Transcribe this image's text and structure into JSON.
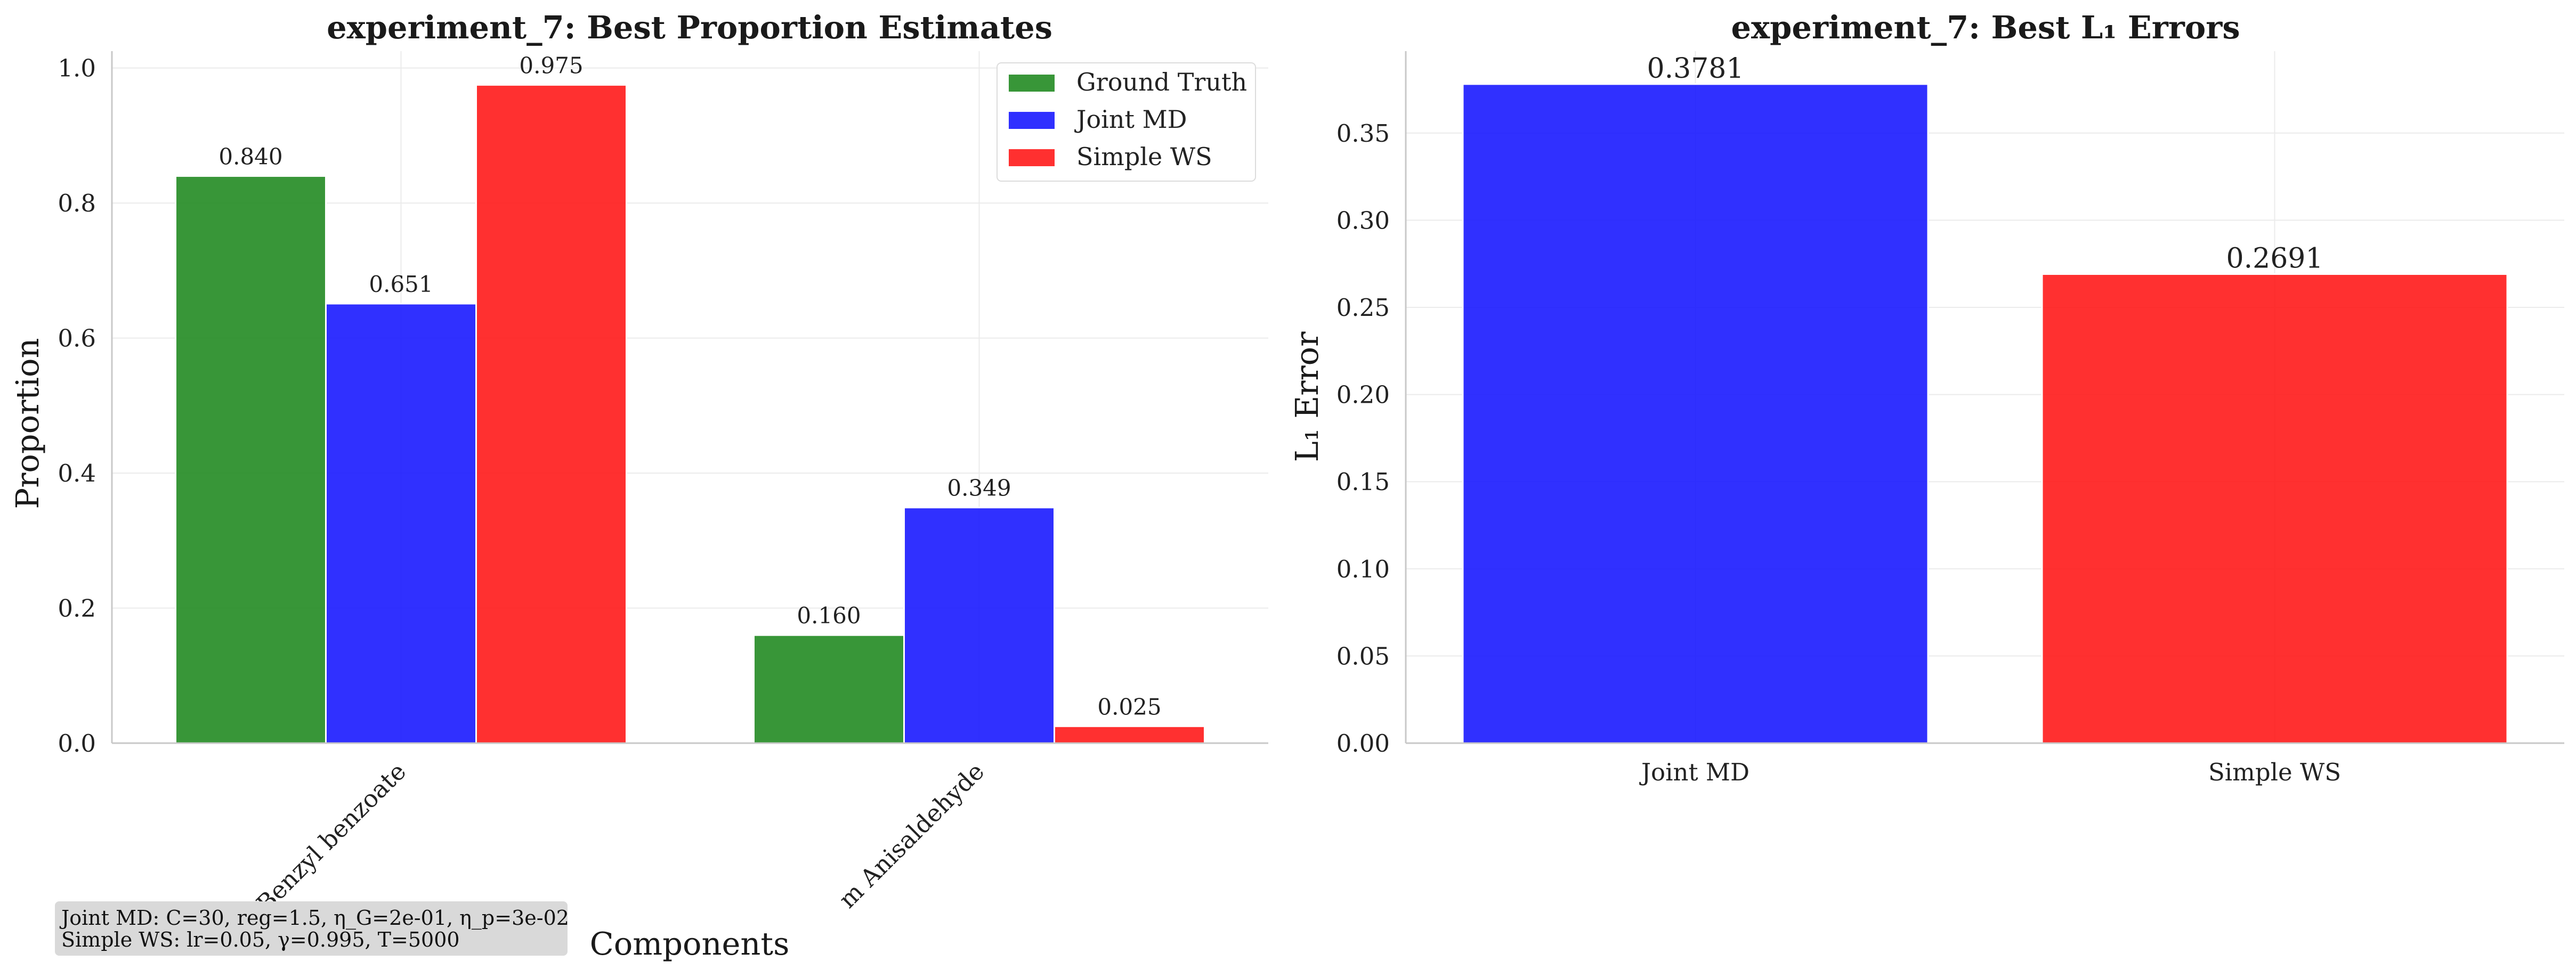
{
  "chart_data": [
    {
      "type": "bar",
      "title": "experiment_7: Best Proportion Estimates",
      "xlabel": "Components",
      "ylabel": "Proportion",
      "categories": [
        "Benzyl benzoate",
        "m Anisaldehyde"
      ],
      "series": [
        {
          "name": "Ground Truth",
          "color": "#228b22",
          "values": [
            0.84,
            0.16
          ],
          "labels": [
            "0.840",
            "0.160"
          ]
        },
        {
          "name": "Joint MD",
          "color": "#1a1aff",
          "values": [
            0.651,
            0.349
          ],
          "labels": [
            "0.651",
            "0.349"
          ]
        },
        {
          "name": "Simple WS",
          "color": "#ff1a1a",
          "values": [
            0.975,
            0.025
          ],
          "labels": [
            "0.975",
            "0.025"
          ]
        }
      ],
      "ylim": [
        0,
        1.025
      ],
      "yticks": [
        "0.0",
        "0.2",
        "0.4",
        "0.6",
        "0.8",
        "1.0"
      ],
      "grid": true,
      "legend": "top-right",
      "annotation": [
        "Joint MD: C=30, reg=1.5, η_G=2e-01, η_p=3e-02",
        "Simple WS: lr=0.05, γ=0.995, T=5000"
      ]
    },
    {
      "type": "bar",
      "title": "experiment_7: Best L₁ Errors",
      "xlabel": "",
      "ylabel": "L₁ Error",
      "categories": [
        "Joint MD",
        "Simple WS"
      ],
      "values": [
        0.3781,
        0.2691
      ],
      "labels": [
        "0.3781",
        "0.2691"
      ],
      "colors": [
        "#1a1aff",
        "#ff1a1a"
      ],
      "ylim": [
        0,
        0.397
      ],
      "yticks": [
        "0.00",
        "0.05",
        "0.10",
        "0.15",
        "0.20",
        "0.25",
        "0.30",
        "0.35"
      ],
      "grid": true
    }
  ]
}
